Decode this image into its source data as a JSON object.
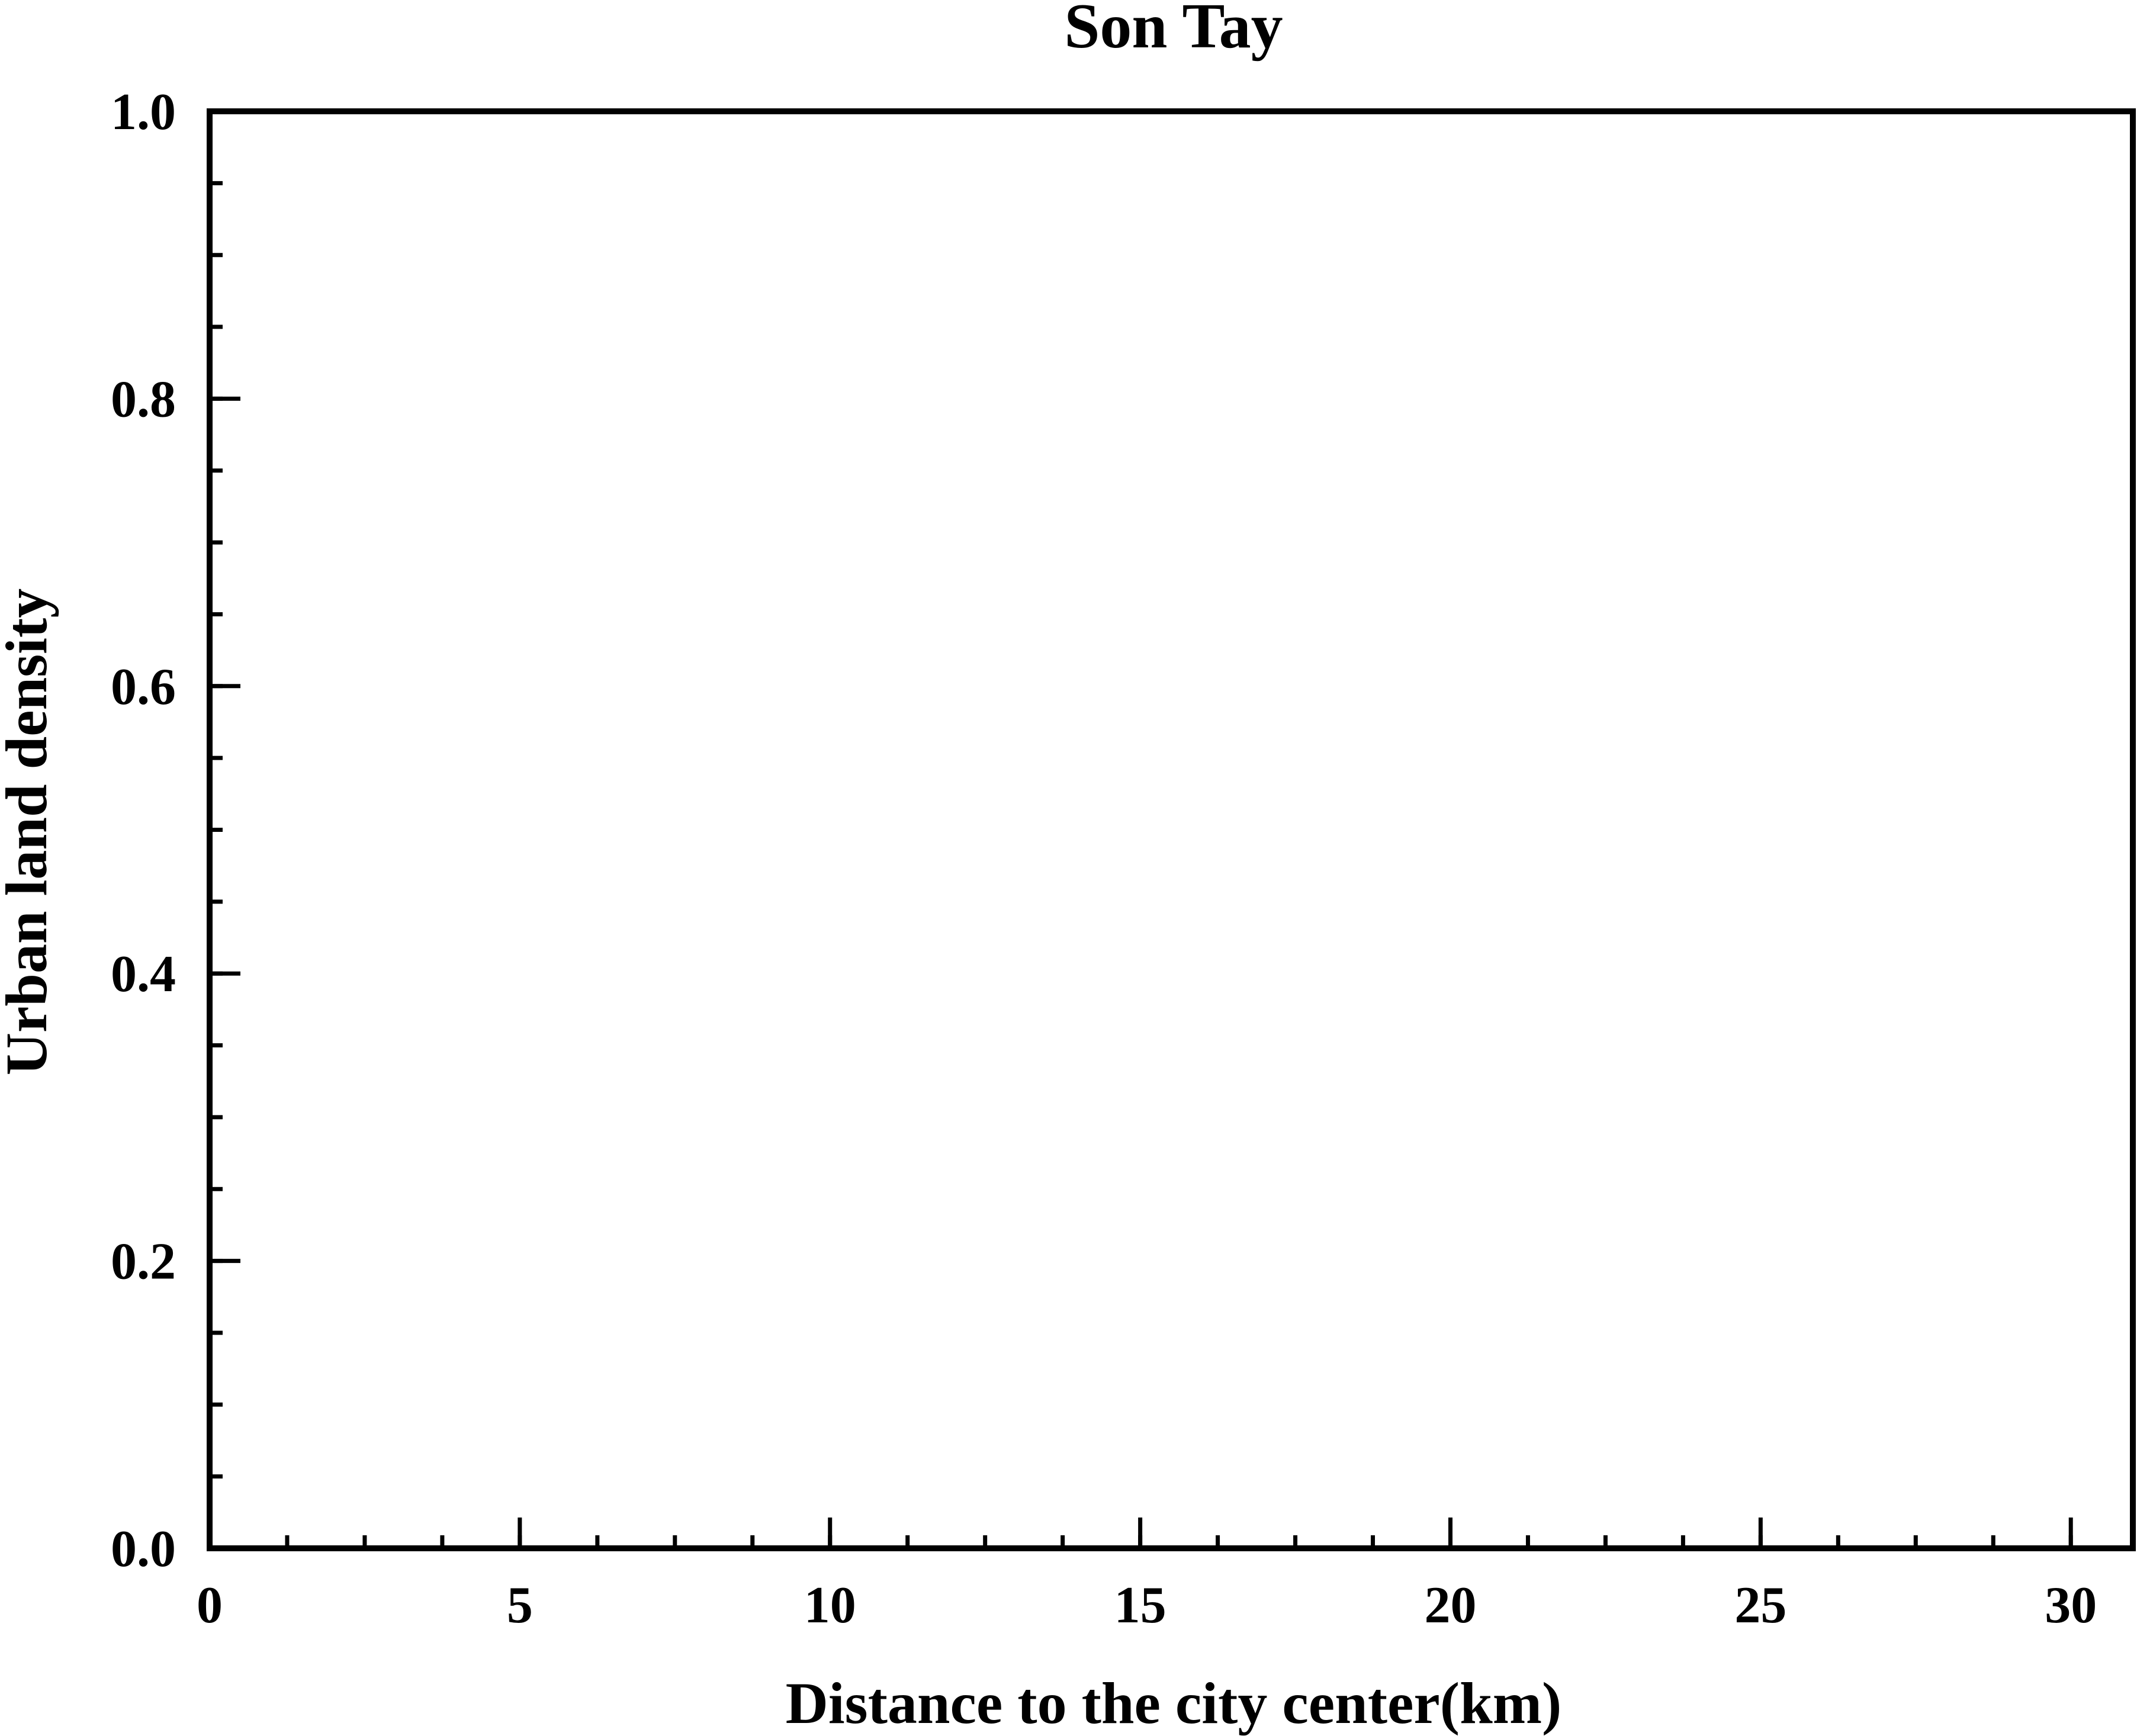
{
  "chart_data": {
    "type": "line",
    "title": "Son Tay",
    "xlabel": "Distance to the city center(km)",
    "ylabel": "Urban land density",
    "xlim": [
      0,
      31
    ],
    "ylim": [
      0,
      1.0
    ],
    "x_ticks": [
      "0",
      "5",
      "10",
      "15",
      "20",
      "25",
      "30"
    ],
    "y_ticks": [
      "0.0",
      "0.2",
      "0.4",
      "0.6",
      "0.8",
      "1.0"
    ],
    "x_minor_step": 1.25,
    "y_minor_step": 0.05,
    "grid": false,
    "series": []
  }
}
